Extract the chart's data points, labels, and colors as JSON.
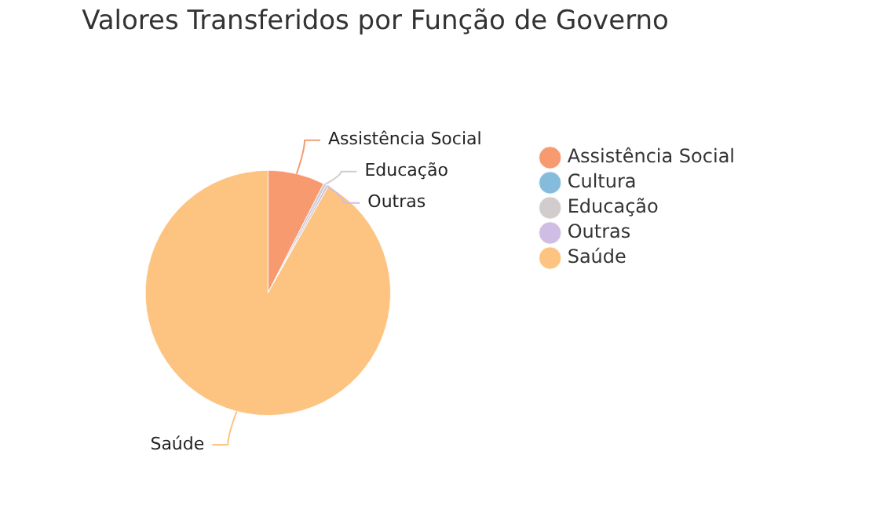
{
  "chart_data": {
    "type": "pie",
    "title": "Valores Transferidos por Função de Governo",
    "categories": [
      "Assistência Social",
      "Cultura",
      "Educação",
      "Outras",
      "Saúde"
    ],
    "values": [
      7.5,
      0,
      0.4,
      0.3,
      91.8
    ],
    "colors": [
      "#f79a70",
      "#86bcdb",
      "#d3cccc",
      "#cfbde3",
      "#fdc381"
    ],
    "legend": "right"
  }
}
